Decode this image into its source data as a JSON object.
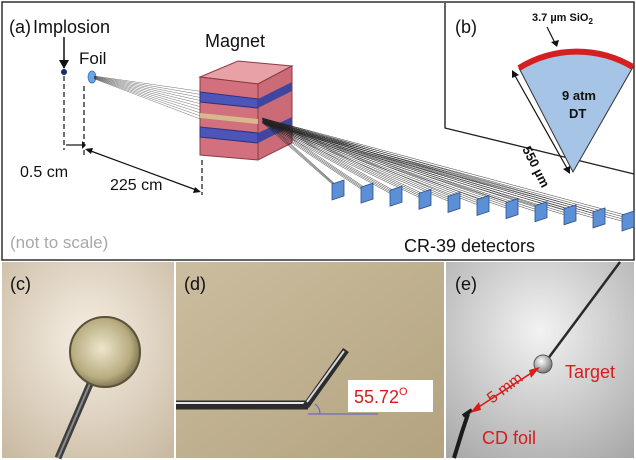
{
  "panel_a": {
    "label": "(a)",
    "implosion": "Implosion",
    "foil": "Foil",
    "magnet": "Magnet",
    "dist_small": "0.5 cm",
    "dist_large": "225 cm",
    "scale_note": "(not to scale)",
    "detectors": "CR-39 detectors",
    "detector_count": 11
  },
  "panel_b": {
    "label": "(b)",
    "shell_thickness": "3.7 µm SiO",
    "shell_subscript": "2",
    "fill_line1": "9 atm",
    "fill_line2": "DT",
    "radius": "550 µm"
  },
  "panel_c": {
    "label": "(c)"
  },
  "panel_d": {
    "label": "(d)",
    "angle": "55.72",
    "angle_unit": "O"
  },
  "panel_e": {
    "label": "(e)",
    "distance": "5 mm",
    "target": "Target",
    "foil": "CD foil"
  },
  "colors": {
    "magnet": "#cf6b78",
    "magnet_core": "#4d55b8",
    "detector": "#5b8fd6",
    "wedge": "#a6c4e6",
    "shell": "#d42020",
    "accent_red": "#d81b1b"
  }
}
